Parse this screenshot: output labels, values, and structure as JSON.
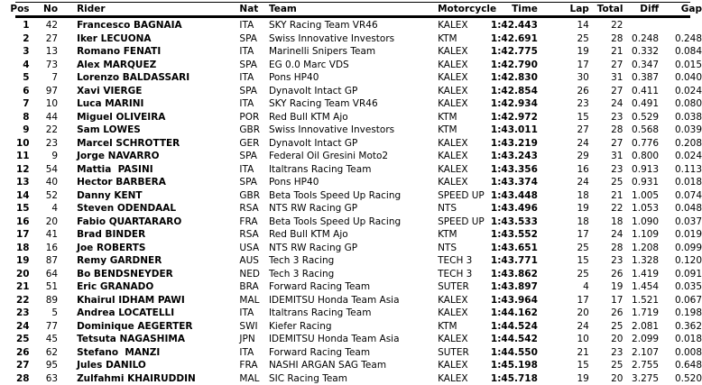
{
  "page": {
    "background": "#ffffff",
    "text_color": "#000000",
    "rule_color": "#000000"
  },
  "table": {
    "columns": [
      "Pos",
      "No",
      "Rider",
      "Nat",
      "Team",
      "Motorcycle",
      "Time",
      "Lap",
      "Total",
      "Diff",
      "Gap"
    ],
    "rows": [
      [
        "1",
        "42",
        "Francesco BAGNAIA",
        "ITA",
        "SKY Racing Team VR46",
        "KALEX",
        "1:42.443",
        "14",
        "22",
        "",
        ""
      ],
      [
        "2",
        "27",
        "Iker LECUONA",
        "SPA",
        "Swiss Innovative Investors",
        "KTM",
        "1:42.691",
        "25",
        "28",
        "0.248",
        "0.248"
      ],
      [
        "3",
        "13",
        "Romano FENATI",
        "ITA",
        "Marinelli Snipers Team",
        "KALEX",
        "1:42.775",
        "19",
        "21",
        "0.332",
        "0.084"
      ],
      [
        "4",
        "73",
        "Alex MARQUEZ",
        "SPA",
        "EG 0.0 Marc VDS",
        "KALEX",
        "1:42.790",
        "17",
        "27",
        "0.347",
        "0.015"
      ],
      [
        "5",
        "7",
        "Lorenzo BALDASSARI",
        "ITA",
        "Pons HP40",
        "KALEX",
        "1:42.830",
        "30",
        "31",
        "0.387",
        "0.040"
      ],
      [
        "6",
        "97",
        "Xavi VIERGE",
        "SPA",
        "Dynavolt Intact GP",
        "KALEX",
        "1:42.854",
        "26",
        "27",
        "0.411",
        "0.024"
      ],
      [
        "7",
        "10",
        "Luca MARINI",
        "ITA",
        "SKY Racing Team VR46",
        "KALEX",
        "1:42.934",
        "23",
        "24",
        "0.491",
        "0.080"
      ],
      [
        "8",
        "44",
        "Miguel OLIVEIRA",
        "POR",
        "Red Bull KTM Ajo",
        "KTM",
        "1:42.972",
        "15",
        "23",
        "0.529",
        "0.038"
      ],
      [
        "9",
        "22",
        "Sam LOWES",
        "GBR",
        "Swiss Innovative Investors",
        "KTM",
        "1:43.011",
        "27",
        "28",
        "0.568",
        "0.039"
      ],
      [
        "10",
        "23",
        "Marcel SCHROTTER",
        "GER",
        "Dynavolt Intact GP",
        "KALEX",
        "1:43.219",
        "24",
        "27",
        "0.776",
        "0.208"
      ],
      [
        "11",
        "9",
        "Jorge NAVARRO",
        "SPA",
        "Federal Oil Gresini Moto2",
        "KALEX",
        "1:43.243",
        "29",
        "31",
        "0.800",
        "0.024"
      ],
      [
        "12",
        "54",
        "Mattia  PASINI",
        "ITA",
        "Italtrans Racing Team",
        "KALEX",
        "1:43.356",
        "16",
        "23",
        "0.913",
        "0.113"
      ],
      [
        "13",
        "40",
        "Hector BARBERA",
        "SPA",
        "Pons HP40",
        "KALEX",
        "1:43.374",
        "24",
        "25",
        "0.931",
        "0.018"
      ],
      [
        "14",
        "52",
        "Danny KENT",
        "GBR",
        "Beta Tools Speed Up Racing",
        "SPEED UP",
        "1:43.448",
        "18",
        "21",
        "1.005",
        "0.074"
      ],
      [
        "15",
        "4",
        "Steven ODENDAAL",
        "RSA",
        "NTS RW Racing GP",
        "NTS",
        "1:43.496",
        "19",
        "22",
        "1.053",
        "0.048"
      ],
      [
        "16",
        "20",
        "Fabio QUARTARARO",
        "FRA",
        "Beta Tools Speed Up Racing",
        "SPEED UP",
        "1:43.533",
        "18",
        "18",
        "1.090",
        "0.037"
      ],
      [
        "17",
        "41",
        "Brad BINDER",
        "RSA",
        "Red Bull KTM Ajo",
        "KTM",
        "1:43.552",
        "17",
        "24",
        "1.109",
        "0.019"
      ],
      [
        "18",
        "16",
        "Joe ROBERTS",
        "USA",
        "NTS RW Racing GP",
        "NTS",
        "1:43.651",
        "25",
        "28",
        "1.208",
        "0.099"
      ],
      [
        "19",
        "87",
        "Remy GARDNER",
        "AUS",
        "Tech 3 Racing",
        "TECH 3",
        "1:43.771",
        "15",
        "23",
        "1.328",
        "0.120"
      ],
      [
        "20",
        "64",
        "Bo BENDSNEYDER",
        "NED",
        "Tech 3 Racing",
        "TECH 3",
        "1:43.862",
        "25",
        "26",
        "1.419",
        "0.091"
      ],
      [
        "21",
        "51",
        "Eric GRANADO",
        "BRA",
        "Forward Racing Team",
        "SUTER",
        "1:43.897",
        "4",
        "19",
        "1.454",
        "0.035"
      ],
      [
        "22",
        "89",
        "Khairul IDHAM PAWI",
        "MAL",
        "IDEMITSU Honda Team Asia",
        "KALEX",
        "1:43.964",
        "17",
        "17",
        "1.521",
        "0.067"
      ],
      [
        "23",
        "5",
        "Andrea LOCATELLI",
        "ITA",
        "Italtrans Racing Team",
        "KALEX",
        "1:44.162",
        "20",
        "26",
        "1.719",
        "0.198"
      ],
      [
        "24",
        "77",
        "Dominique AEGERTER",
        "SWI",
        "Kiefer Racing",
        "KTM",
        "1:44.524",
        "24",
        "25",
        "2.081",
        "0.362"
      ],
      [
        "25",
        "45",
        "Tetsuta NAGASHIMA",
        "JPN",
        "IDEMITSU Honda Team Asia",
        "KALEX",
        "1:44.542",
        "10",
        "20",
        "2.099",
        "0.018"
      ],
      [
        "26",
        "62",
        "Stefano  MANZI",
        "ITA",
        "Forward Racing Team",
        "SUTER",
        "1:44.550",
        "21",
        "23",
        "2.107",
        "0.008"
      ],
      [
        "27",
        "95",
        "Jules DANILO",
        "FRA",
        "NASHI ARGAN SAG Team",
        "KALEX",
        "1:45.198",
        "15",
        "25",
        "2.755",
        "0.648"
      ],
      [
        "28",
        "63",
        "Zulfahmi KHAIRUDDIN",
        "MAL",
        "SIC Racing Team",
        "KALEX",
        "1:45.718",
        "19",
        "20",
        "3.275",
        "0.520"
      ]
    ]
  }
}
